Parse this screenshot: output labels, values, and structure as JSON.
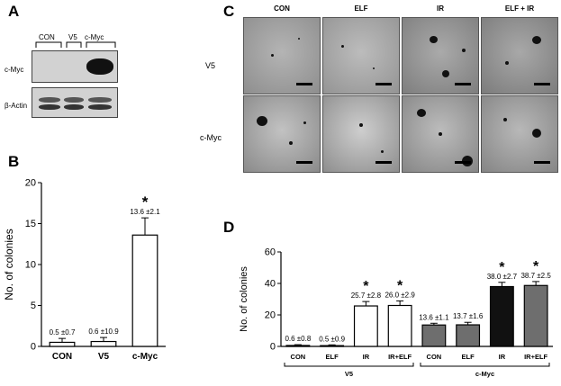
{
  "panel_a": {
    "letter": "A",
    "lanes": [
      "CON",
      "V5",
      "c-Myc"
    ],
    "rows": [
      "c-Myc",
      "β-Actin"
    ]
  },
  "panel_c": {
    "letter": "C",
    "columns": [
      "CON",
      "ELF",
      "IR",
      "ELF + IR"
    ],
    "rows": [
      "V5",
      "c-Myc"
    ]
  },
  "chart_data": [
    {
      "panel": "B",
      "type": "bar",
      "ylabel": "No. of colonies",
      "ylim": [
        0,
        20
      ],
      "yticks": [
        0,
        5,
        10,
        15,
        20
      ],
      "categories": [
        "CON",
        "V5",
        "c-Myc"
      ],
      "values": [
        0.5,
        0.6,
        13.6
      ],
      "errors": [
        0.7,
        10.9,
        2.1
      ],
      "value_labels": [
        "0.5 ±0.7",
        "0.6 ±10.9",
        "13.6 ±2.1"
      ],
      "significance": [
        "",
        "",
        "*"
      ],
      "bar_colors": [
        "#ffffff",
        "#ffffff",
        "#ffffff"
      ]
    },
    {
      "panel": "D",
      "type": "bar",
      "ylabel": "No. of colonies",
      "ylim": [
        0,
        60
      ],
      "yticks": [
        0,
        20,
        40,
        60
      ],
      "categories": [
        "CON",
        "ELF",
        "IR",
        "IR+ELF",
        "CON",
        "ELF",
        "IR",
        "IR+ELF"
      ],
      "groups": [
        {
          "name": "V5",
          "start": 0,
          "end": 3
        },
        {
          "name": "c-Myc",
          "start": 4,
          "end": 7
        }
      ],
      "values": [
        0.6,
        0.5,
        25.7,
        26.0,
        13.6,
        13.7,
        38.0,
        38.7
      ],
      "errors": [
        0.8,
        0.9,
        2.8,
        2.9,
        1.1,
        1.6,
        2.7,
        2.5
      ],
      "value_labels": [
        "0.6 ±0.8",
        "0.5 ±0.9",
        "25.7 ±2.8",
        "26.0 ±2.9",
        "13.6 ±1.1",
        "13.7 ±1.6",
        "38.0 ±2.7",
        "38.7 ±2.5"
      ],
      "significance": [
        "",
        "",
        "*",
        "*",
        "",
        "",
        "*",
        "*"
      ],
      "bar_colors": [
        "#ffffff",
        "#ffffff",
        "#ffffff",
        "#ffffff",
        "#6e6e6e",
        "#6e6e6e",
        "#111111",
        "#6e6e6e"
      ]
    }
  ]
}
